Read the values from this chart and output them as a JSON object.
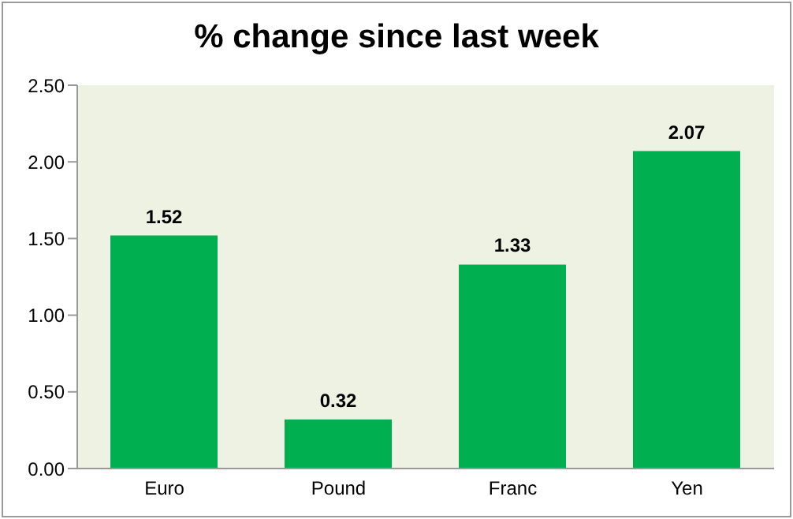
{
  "chart_data": {
    "type": "bar",
    "title": "% change since last week",
    "categories": [
      "Euro",
      "Pound",
      "Franc",
      "Yen"
    ],
    "values": [
      1.52,
      0.32,
      1.33,
      2.07
    ],
    "color": "#00b050",
    "ylim": [
      0,
      2.5
    ],
    "yticks": [
      {
        "value": 0,
        "label": "0.00"
      },
      {
        "value": 0.5,
        "label": "0.50"
      },
      {
        "value": 1,
        "label": "1.00"
      },
      {
        "value": 1.5,
        "label": "1.50"
      },
      {
        "value": 2,
        "label": "2.00"
      },
      {
        "value": 2.5,
        "label": "2.50"
      }
    ],
    "data_labels": true,
    "grid": false,
    "legend": false
  }
}
